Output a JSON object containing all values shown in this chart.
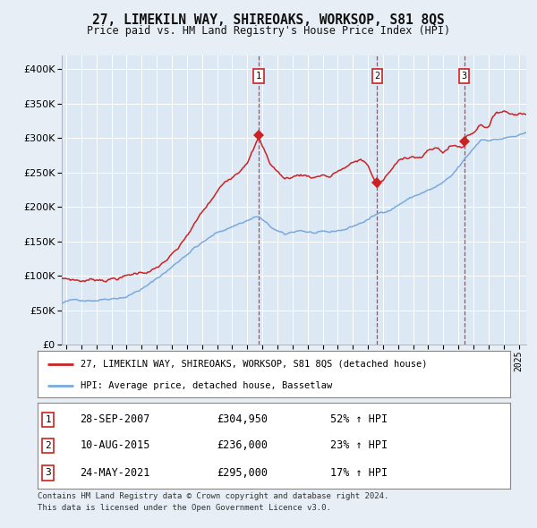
{
  "title": "27, LIMEKILN WAY, SHIREOAKS, WORKSOP, S81 8QS",
  "subtitle": "Price paid vs. HM Land Registry's House Price Index (HPI)",
  "legend_label_red": "27, LIMEKILN WAY, SHIREOAKS, WORKSOP, S81 8QS (detached house)",
  "legend_label_blue": "HPI: Average price, detached house, Bassetlaw",
  "transactions": [
    {
      "num": 1,
      "date": "28-SEP-2007",
      "price": 304950,
      "pct": "52%",
      "dir": "↑"
    },
    {
      "num": 2,
      "date": "10-AUG-2015",
      "price": 236000,
      "pct": "23%",
      "dir": "↑"
    },
    {
      "num": 3,
      "date": "24-MAY-2021",
      "price": 295000,
      "pct": "17%",
      "dir": "↑"
    }
  ],
  "footer1": "Contains HM Land Registry data © Crown copyright and database right 2024.",
  "footer2": "This data is licensed under the Open Government Licence v3.0.",
  "fig_bg": "#e8eef5",
  "plot_bg": "#e8eef5",
  "chart_inner_bg": "#dce8f4",
  "red_color": "#cc2222",
  "blue_color": "#7aaadd",
  "ylim": [
    0,
    420000
  ],
  "yticks": [
    0,
    50000,
    100000,
    150000,
    200000,
    250000,
    300000,
    350000,
    400000
  ],
  "xstart": 1994.7,
  "xend": 2025.5,
  "trans_dates": [
    2007.747,
    2015.607,
    2021.388
  ],
  "trans_prices": [
    304950,
    236000,
    295000
  ]
}
